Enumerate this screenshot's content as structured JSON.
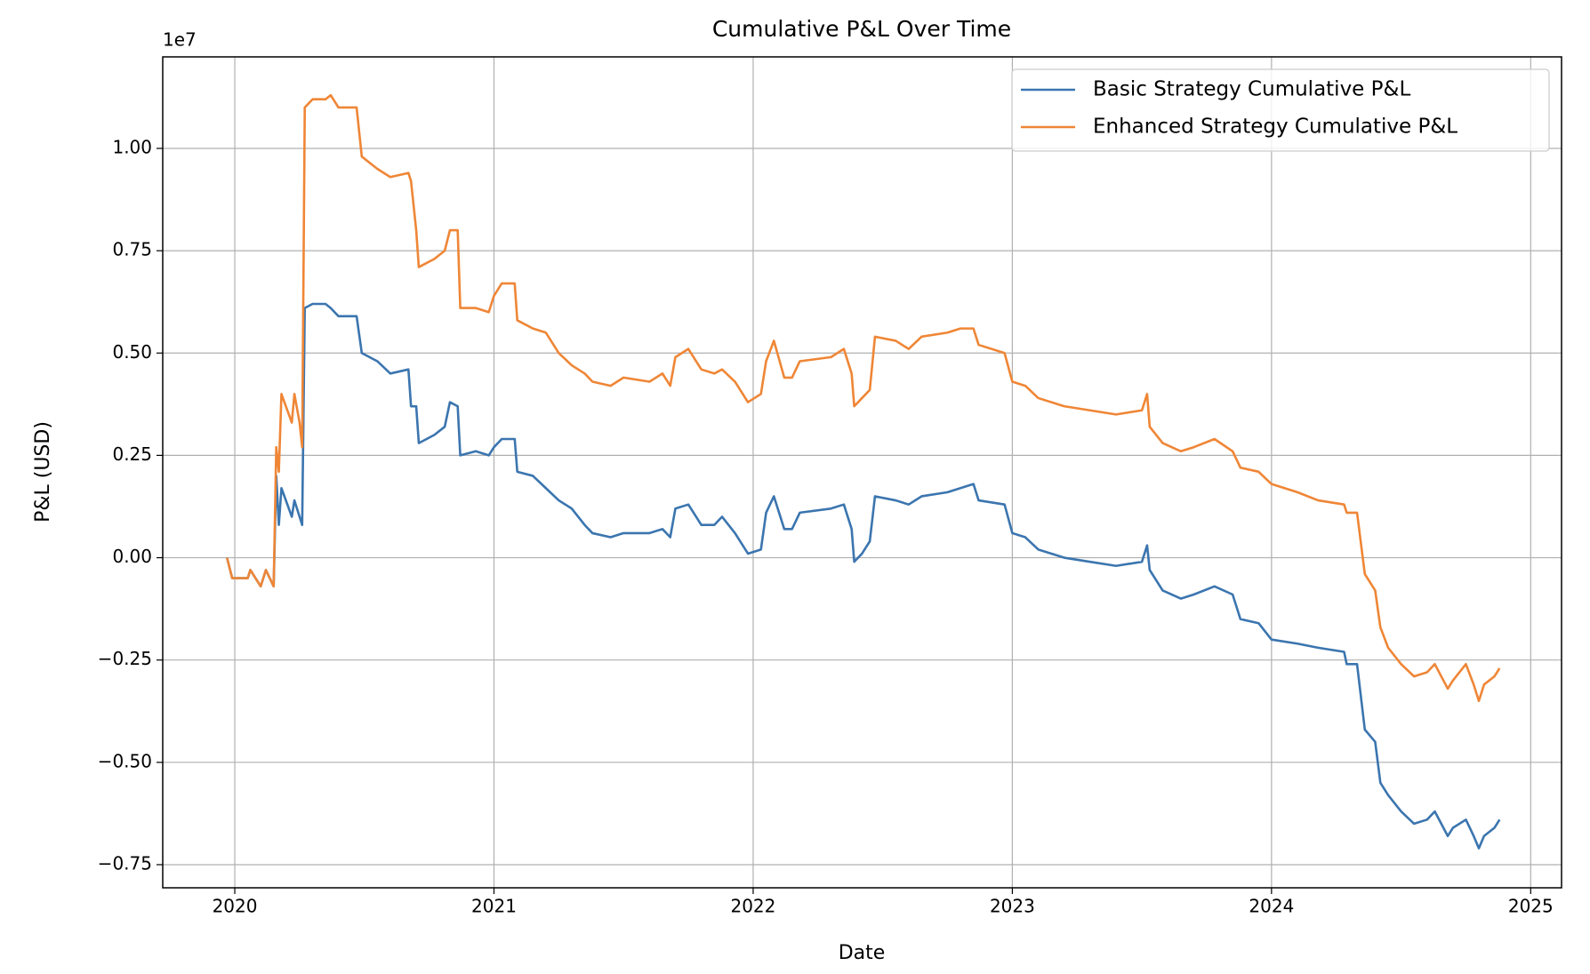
{
  "chart_data": {
    "type": "line",
    "title": "Cumulative P&L Over Time",
    "xlabel": "Date",
    "ylabel": "P&L (USD)",
    "y_offset_label": "1e7",
    "x": [
      2019.97,
      2019.99,
      2020.05,
      2020.06,
      2020.1,
      2020.12,
      2020.15,
      2020.16,
      2020.17,
      2020.18,
      2020.22,
      2020.23,
      2020.25,
      2020.26,
      2020.27,
      2020.3,
      2020.35,
      2020.37,
      2020.4,
      2020.47,
      2020.49,
      2020.55,
      2020.6,
      2020.67,
      2020.68,
      2020.7,
      2020.71,
      2020.77,
      2020.81,
      2020.83,
      2020.86,
      2020.87,
      2020.93,
      2020.98,
      2021.0,
      2021.03,
      2021.08,
      2021.09,
      2021.15,
      2021.2,
      2021.25,
      2021.3,
      2021.35,
      2021.38,
      2021.45,
      2021.5,
      2021.6,
      2021.65,
      2021.68,
      2021.7,
      2021.75,
      2021.8,
      2021.85,
      2021.88,
      2021.93,
      2021.98,
      2022.03,
      2022.05,
      2022.08,
      2022.12,
      2022.15,
      2022.18,
      2022.3,
      2022.35,
      2022.38,
      2022.39,
      2022.42,
      2022.45,
      2022.47,
      2022.55,
      2022.6,
      2022.65,
      2022.75,
      2022.8,
      2022.85,
      2022.87,
      2022.97,
      2023.0,
      2023.05,
      2023.1,
      2023.2,
      2023.3,
      2023.4,
      2023.5,
      2023.52,
      2023.53,
      2023.58,
      2023.65,
      2023.7,
      2023.78,
      2023.85,
      2023.88,
      2023.95,
      2024.0,
      2024.1,
      2024.18,
      2024.28,
      2024.29,
      2024.33,
      2024.36,
      2024.4,
      2024.42,
      2024.45,
      2024.5,
      2024.55,
      2024.6,
      2024.63,
      2024.68,
      2024.7,
      2024.75,
      2024.78,
      2024.8,
      2024.82,
      2024.86,
      2024.88
    ],
    "series": [
      {
        "name": "Basic Strategy Cumulative P&L",
        "color": "#3b75af",
        "values": [
          0,
          -0.05,
          -0.05,
          -0.03,
          -0.07,
          -0.03,
          -0.07,
          0.2,
          0.08,
          0.17,
          0.1,
          0.14,
          0.1,
          0.08,
          0.61,
          0.62,
          0.62,
          0.61,
          0.59,
          0.59,
          0.5,
          0.48,
          0.45,
          0.46,
          0.37,
          0.37,
          0.28,
          0.3,
          0.32,
          0.38,
          0.37,
          0.25,
          0.26,
          0.25,
          0.27,
          0.29,
          0.29,
          0.21,
          0.2,
          0.17,
          0.14,
          0.12,
          0.08,
          0.06,
          0.05,
          0.06,
          0.06,
          0.07,
          0.05,
          0.12,
          0.13,
          0.08,
          0.08,
          0.1,
          0.06,
          0.01,
          0.02,
          0.11,
          0.15,
          0.07,
          0.07,
          0.11,
          0.12,
          0.13,
          0.07,
          -0.01,
          0.01,
          0.04,
          0.15,
          0.14,
          0.13,
          0.15,
          0.16,
          0.17,
          0.18,
          0.14,
          0.13,
          0.06,
          0.05,
          0.02,
          0.0,
          -0.01,
          -0.02,
          -0.01,
          0.03,
          -0.03,
          -0.08,
          -0.1,
          -0.09,
          -0.07,
          -0.09,
          -0.15,
          -0.16,
          -0.2,
          -0.21,
          -0.22,
          -0.23,
          -0.26,
          -0.26,
          -0.42,
          -0.45,
          -0.55,
          -0.58,
          -0.62,
          -0.65,
          -0.64,
          -0.62,
          -0.68,
          -0.66,
          -0.64,
          -0.68,
          -0.71,
          -0.68,
          -0.66,
          -0.64
        ]
      },
      {
        "name": "Enhanced Strategy Cumulative P&L",
        "color": "#ef8636",
        "values": [
          0,
          -0.05,
          -0.05,
          -0.03,
          -0.07,
          -0.03,
          -0.07,
          0.27,
          0.21,
          0.4,
          0.33,
          0.4,
          0.33,
          0.27,
          1.1,
          1.12,
          1.12,
          1.13,
          1.1,
          1.1,
          0.98,
          0.95,
          0.93,
          0.94,
          0.92,
          0.8,
          0.71,
          0.73,
          0.75,
          0.8,
          0.8,
          0.61,
          0.61,
          0.6,
          0.64,
          0.67,
          0.67,
          0.58,
          0.56,
          0.55,
          0.5,
          0.47,
          0.45,
          0.43,
          0.42,
          0.44,
          0.43,
          0.45,
          0.42,
          0.49,
          0.51,
          0.46,
          0.45,
          0.46,
          0.43,
          0.38,
          0.4,
          0.48,
          0.53,
          0.44,
          0.44,
          0.48,
          0.49,
          0.51,
          0.45,
          0.37,
          0.39,
          0.41,
          0.54,
          0.53,
          0.51,
          0.54,
          0.55,
          0.56,
          0.56,
          0.52,
          0.5,
          0.43,
          0.42,
          0.39,
          0.37,
          0.36,
          0.35,
          0.36,
          0.4,
          0.32,
          0.28,
          0.26,
          0.27,
          0.29,
          0.26,
          0.22,
          0.21,
          0.18,
          0.16,
          0.14,
          0.13,
          0.11,
          0.11,
          -0.04,
          -0.08,
          -0.17,
          -0.22,
          -0.26,
          -0.29,
          -0.28,
          -0.26,
          -0.32,
          -0.3,
          -0.26,
          -0.31,
          -0.35,
          -0.31,
          -0.29,
          -0.27
        ]
      }
    ],
    "xlim": [
      2019.722,
      2025.119
    ],
    "xticks": [
      2020,
      2021,
      2022,
      2023,
      2024,
      2025
    ],
    "ylim": [
      -0.8065,
      1.2236
    ],
    "yticks": [
      {
        "value": -0.75,
        "label": "−0.75"
      },
      {
        "value": -0.5,
        "label": "−0.50"
      },
      {
        "value": -0.25,
        "label": "−0.25"
      },
      {
        "value": 0,
        "label": "0.00"
      },
      {
        "value": 0.25,
        "label": "0.25"
      },
      {
        "value": 0.5,
        "label": "0.50"
      },
      {
        "value": 0.75,
        "label": "0.75"
      },
      {
        "value": 1,
        "label": "1.00"
      }
    ],
    "grid": true,
    "legend": "upper right"
  }
}
